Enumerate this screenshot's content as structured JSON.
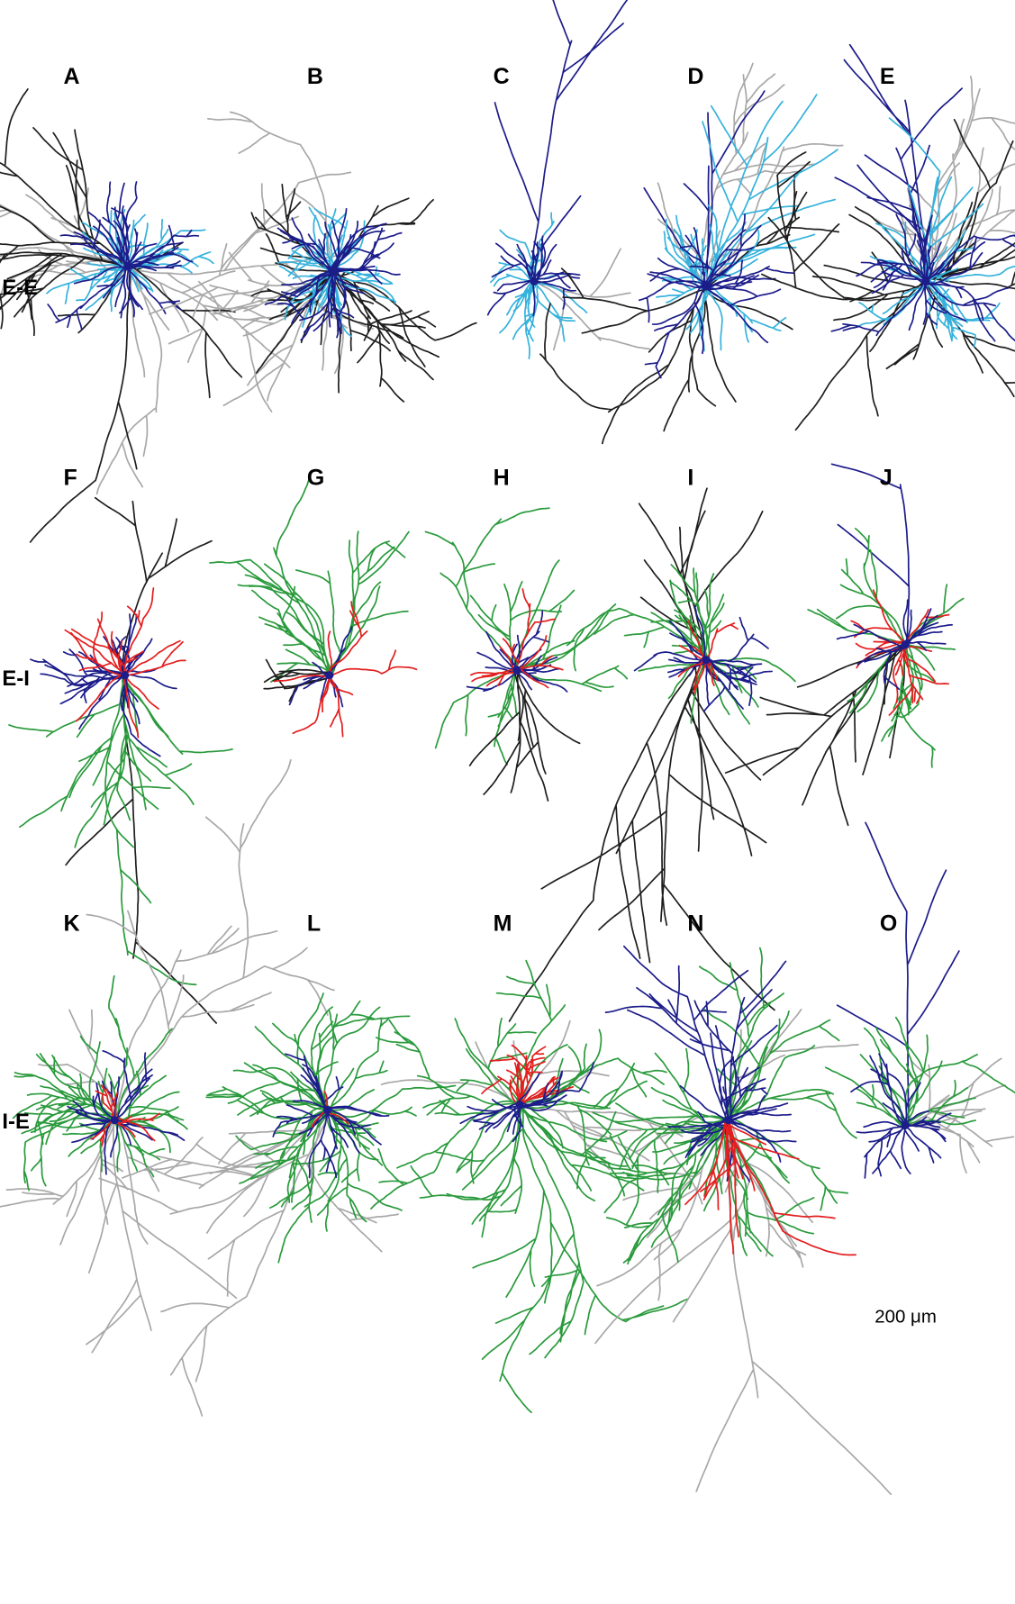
{
  "panels": [
    "A",
    "B",
    "C",
    "D",
    "E",
    "F",
    "G",
    "H",
    "I",
    "J",
    "K",
    "L",
    "M",
    "N",
    "O"
  ],
  "rows": [
    "E-E",
    "E-I",
    "I-E"
  ],
  "scale_bar": "200 μm"
}
